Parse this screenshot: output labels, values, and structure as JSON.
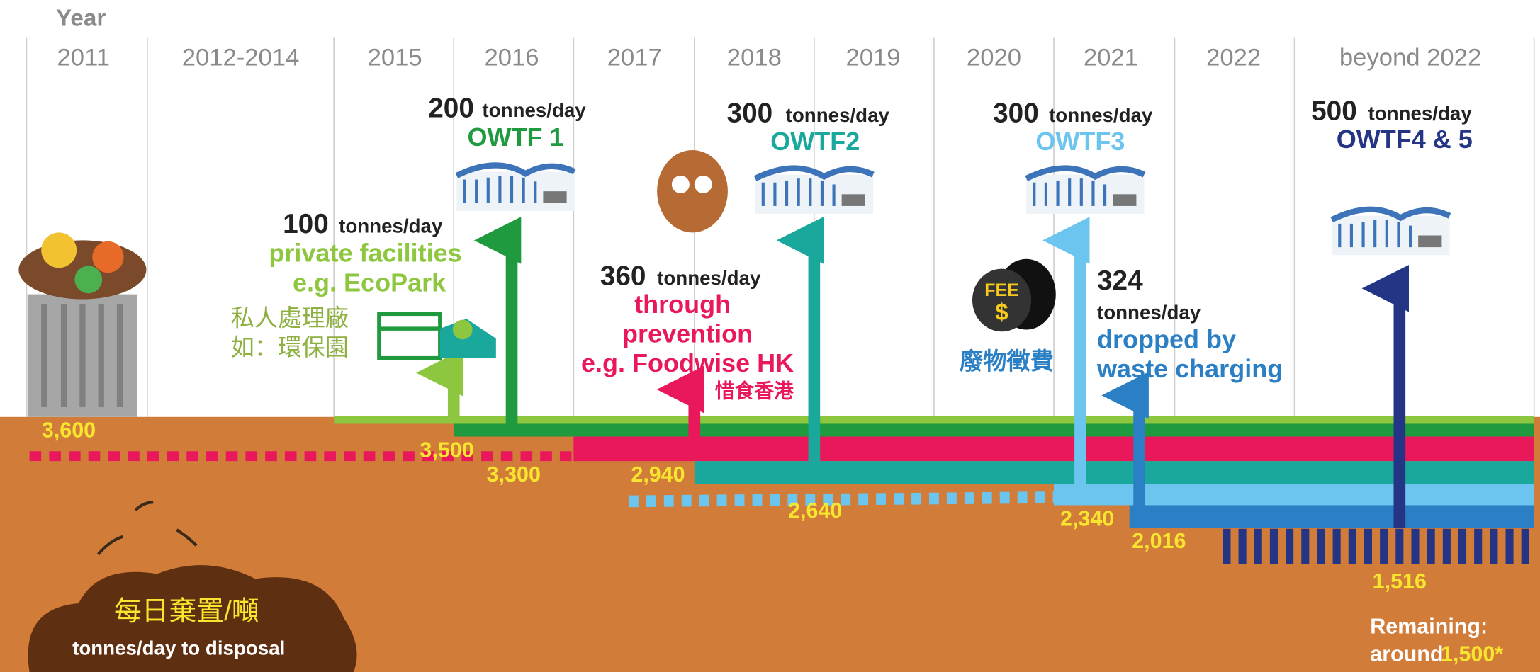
{
  "header": {
    "year_label": "Year"
  },
  "years": [
    "2011",
    "2012-2014",
    "2015",
    "2016",
    "2017",
    "2018",
    "2019",
    "2020",
    "2021",
    "2022",
    "beyond 2022"
  ],
  "measures": [
    {
      "amount": "100",
      "unit": "tonnes/day",
      "lines": [
        "private facilities",
        "e.g. EcoPark"
      ],
      "chinese": [
        "私人處理廠",
        "如：環保園"
      ]
    },
    {
      "amount": "200",
      "unit": "tonnes/day",
      "lines": [
        "OWTF 1"
      ]
    },
    {
      "amount": "300",
      "unit": "tonnes/day",
      "lines": [
        "OWTF2"
      ]
    },
    {
      "amount": "360",
      "unit": "tonnes/day",
      "lines": [
        "through",
        "prevention",
        "e.g. Foodwise HK"
      ],
      "chinese": [
        "惜食香港"
      ]
    },
    {
      "amount": "300",
      "unit": "tonnes/day",
      "lines": [
        "OWTF3"
      ]
    },
    {
      "amount": "324",
      "unit": "tonnes/day",
      "lines": [
        "dropped by",
        "waste charging"
      ],
      "chinese": [
        "廢物徵費"
      ]
    },
    {
      "amount": "500",
      "unit": "tonnes/day",
      "lines": [
        "OWTF4 & 5"
      ]
    }
  ],
  "fee_bag": {
    "label": "FEE",
    "symbol": "$"
  },
  "levels": [
    "3,600",
    "3,500",
    "3,300",
    "2,940",
    "2,640",
    "2,340",
    "2,016",
    "1,516"
  ],
  "disposal": {
    "chinese": "每日棄置/噸",
    "english": "tonnes/day to disposal"
  },
  "remaining": {
    "line1": "Remaining:",
    "line2": "around",
    "value": "1,500*"
  }
}
